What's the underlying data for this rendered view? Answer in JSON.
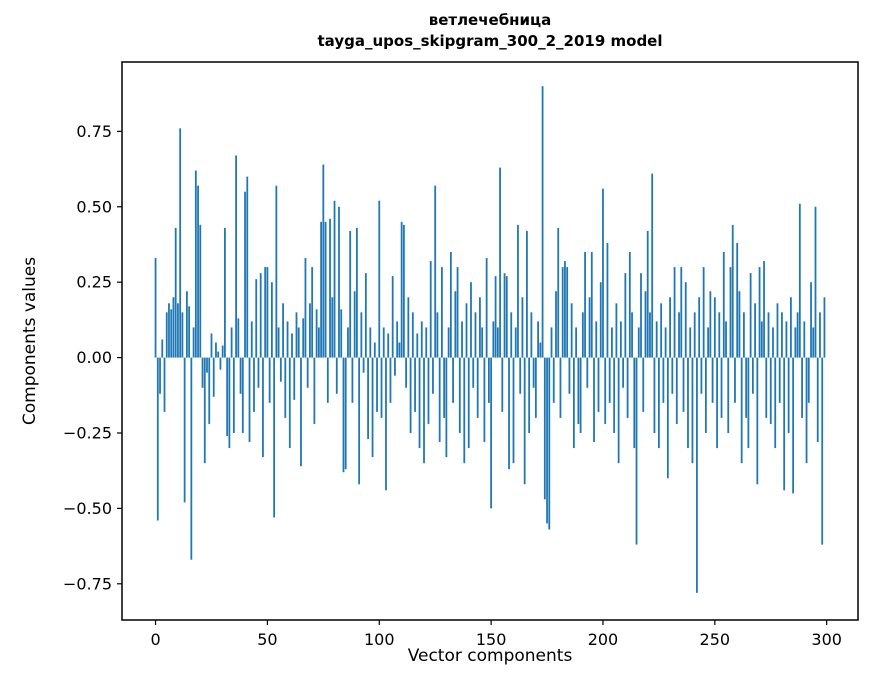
{
  "title": {
    "line1": "ветлечебница",
    "line2": "tayga_upos_skipgram_300_2_2019 model"
  },
  "chart_data": {
    "type": "bar",
    "title": "ветлечебница\ntayga_upos_skipgram_300_2_2019 model",
    "xlabel": "Vector components",
    "ylabel": "Components values",
    "xlim": [
      -15,
      314
    ],
    "ylim": [
      -0.87,
      0.98
    ],
    "xticks": [
      0,
      50,
      100,
      150,
      200,
      250,
      300
    ],
    "yticks": [
      -0.75,
      -0.5,
      -0.25,
      0,
      0.25,
      0.5,
      0.75
    ],
    "grid": false,
    "legend": "none",
    "bar_color": "#1f77b4",
    "n": 300,
    "values": [
      0.33,
      -0.54,
      -0.12,
      0.06,
      -0.18,
      0.15,
      0.18,
      0.16,
      0.2,
      0.43,
      0.18,
      0.76,
      0.15,
      -0.48,
      0.22,
      0.17,
      -0.67,
      0.1,
      0.62,
      0.57,
      0.44,
      -0.1,
      -0.35,
      -0.05,
      -0.22,
      0.08,
      -0.13,
      0.05,
      0.02,
      -0.04,
      0.04,
      0.43,
      -0.26,
      -0.3,
      0.1,
      -0.25,
      0.67,
      0.13,
      -0.12,
      -0.25,
      0.55,
      0.6,
      -0.28,
      0.12,
      -0.18,
      0.26,
      -0.1,
      0.28,
      -0.33,
      0.3,
      0.3,
      -0.15,
      0.25,
      -0.53,
      0.57,
      0.1,
      -0.08,
      0.18,
      -0.2,
      0.12,
      -0.3,
      0.08,
      -0.14,
      0.15,
      0.1,
      -0.36,
      0.13,
      0.33,
      -0.1,
      0.18,
      0.3,
      -0.22,
      0.16,
      0.1,
      0.45,
      0.64,
      0.45,
      -0.15,
      0.46,
      0.2,
      0.52,
      -0.12,
      0.5,
      0.16,
      -0.38,
      -0.37,
      0.1,
      0.42,
      -0.15,
      0.22,
      0.43,
      -0.42,
      0.15,
      -0.05,
      0.28,
      -0.27,
      0.1,
      -0.33,
      0.05,
      -0.18,
      0.52,
      -0.2,
      0.1,
      -0.44,
      0.08,
      -0.15,
      0.27,
      -0.06,
      0.12,
      0.05,
      0.45,
      0.44,
      -0.1,
      0.2,
      -0.25,
      0.15,
      -0.18,
      0.08,
      -0.3,
      0.12,
      -0.35,
      0.1,
      -0.22,
      0.32,
      -0.12,
      0.57,
      0.15,
      -0.28,
      0.3,
      -0.2,
      -0.33,
      0.1,
      0.35,
      -0.15,
      0.22,
      0.3,
      -0.25,
      0.12,
      -0.35,
      0.18,
      -0.3,
      0.25,
      -0.1,
      0.15,
      -0.2,
      0.2,
      0.1,
      -0.28,
      0.33,
      -0.15,
      -0.5,
      0.12,
      0.27,
      0.1,
      0.63,
      -0.18,
      0.28,
      0.27,
      -0.37,
      0.15,
      -0.35,
      0.1,
      0.44,
      -0.12,
      0.2,
      -0.42,
      0.42,
      -0.25,
      0.15,
      -0.1,
      -0.2,
      0.12,
      0.05,
      0.9,
      -0.47,
      -0.55,
      -0.57,
      0.1,
      -0.15,
      0.22,
      0.43,
      -0.2,
      0.3,
      0.32,
      0.3,
      -0.12,
      0.18,
      -0.3,
      0.1,
      -0.22,
      -0.25,
      0.15,
      0.35,
      -0.1,
      0.2,
      0.35,
      -0.28,
      0.12,
      -0.18,
      0.25,
      0.56,
      -0.22,
      0.38,
      -0.15,
      0.1,
      -0.25,
      0.18,
      -0.35,
      0.12,
      -0.1,
      0.28,
      -0.2,
      0.35,
      0.15,
      -0.3,
      -0.62,
      0.1,
      0.28,
      -0.18,
      0.22,
      0.42,
      0.15,
      0.61,
      -0.25,
      0.12,
      -0.3,
      0.18,
      -0.15,
      0.1,
      -0.4,
      0.2,
      -0.12,
      0.3,
      -0.22,
      0.15,
      0.3,
      -0.18,
      0.25,
      -0.3,
      0.1,
      -0.35,
      0.15,
      -0.78,
      0.2,
      -0.12,
      0.3,
      -0.25,
      0.1,
      0.22,
      -0.15,
      0.2,
      -0.3,
      0.15,
      -0.2,
      0.35,
      0.12,
      -0.25,
      0.3,
      0.44,
      -0.15,
      0.38,
      0.22,
      -0.35,
      0.15,
      -0.2,
      -0.3,
      0.28,
      -0.12,
      0.18,
      -0.42,
      0.3,
      0.12,
      0.32,
      -0.2,
      0.15,
      -0.22,
      0.1,
      -0.3,
      0.18,
      -0.15,
      0.15,
      -0.44,
      0.12,
      -0.25,
      0.2,
      -0.45,
      0.1,
      0.15,
      0.51,
      -0.2,
      0.12,
      -0.35,
      -0.15,
      0.25,
      0.1,
      0.5,
      -0.28,
      0.15,
      -0.62,
      0.2
    ]
  }
}
